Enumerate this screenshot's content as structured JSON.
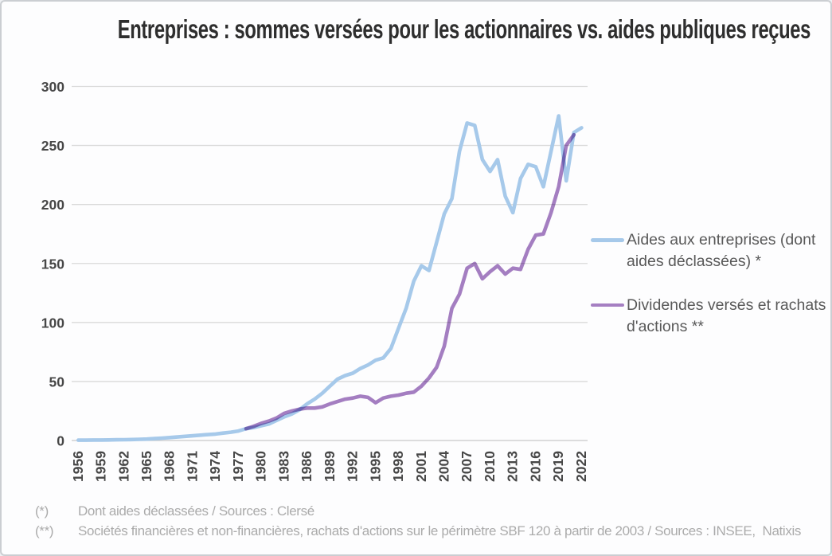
{
  "title": "Entreprises : sommes versées pour les actionnaires vs. aides publiques reçues",
  "legend": [
    {
      "label": "Aides aux entreprises (dont aides déclassées) *",
      "color": "#a6c9ea"
    },
    {
      "label": "Dividendes versés et rachats d'actions **",
      "color": "#a57fc2"
    }
  ],
  "footnotes": [
    {
      "marker": "(*)",
      "text": "Dont aides déclassées / Sources : Clersé"
    },
    {
      "marker": "(**)",
      "text": "Sociétés financières et non-financières, rachats d'actions sur le périmètre SBF 120 à partir de 2003 / Sources : INSEE,  Natixis"
    }
  ],
  "chart_data": {
    "type": "line",
    "title": "Entreprises : sommes versées pour les actionnaires vs. aides publiques reçues",
    "xlabel": "",
    "ylabel": "",
    "xlim": [
      1956,
      2022
    ],
    "ylim": [
      0,
      300
    ],
    "grid": "horizontal",
    "legend_position": "right",
    "y_ticks": [
      0,
      50,
      100,
      150,
      200,
      250,
      300
    ],
    "x_tick_labels": [
      "1956",
      "1959",
      "1962",
      "1965",
      "1968",
      "1971",
      "1974",
      "1977",
      "1980",
      "1983",
      "1986",
      "1989",
      "1992",
      "1995",
      "1998",
      "2001",
      "2004",
      "2007",
      "2010",
      "2013",
      "2016",
      "2019",
      "2022"
    ],
    "series": [
      {
        "name": "Aides aux entreprises (dont aides déclassées) *",
        "color": "#a6c9ea",
        "years": [
          1956,
          1957,
          1958,
          1959,
          1960,
          1961,
          1962,
          1963,
          1964,
          1965,
          1966,
          1967,
          1968,
          1969,
          1970,
          1971,
          1972,
          1973,
          1974,
          1975,
          1976,
          1977,
          1978,
          1979,
          1980,
          1981,
          1982,
          1983,
          1984,
          1985,
          1986,
          1987,
          1988,
          1989,
          1990,
          1991,
          1992,
          1993,
          1994,
          1995,
          1996,
          1997,
          1998,
          1999,
          2000,
          2001,
          2002,
          2003,
          2004,
          2005,
          2006,
          2007,
          2008,
          2009,
          2010,
          2011,
          2012,
          2013,
          2014,
          2015,
          2016,
          2017,
          2018,
          2019,
          2020,
          2021,
          2022
        ],
        "values": [
          0.3,
          0.3,
          0.4,
          0.4,
          0.5,
          0.6,
          0.7,
          0.8,
          1,
          1.2,
          1.6,
          2,
          2.5,
          3,
          3.5,
          4,
          4.5,
          5,
          5.5,
          6.3,
          7,
          8,
          10,
          11,
          12.5,
          14,
          17,
          20,
          22.5,
          26,
          31,
          35,
          40,
          46,
          52,
          55,
          57,
          61,
          64,
          68,
          70,
          78,
          95,
          112,
          135,
          148,
          144,
          168,
          192,
          205,
          245,
          269,
          267,
          238,
          228,
          238,
          207,
          193,
          222,
          234,
          232,
          215,
          245,
          275,
          220,
          261,
          265
        ]
      },
      {
        "name": "Dividendes versés et rachats d'actions **",
        "color": "#a57fc2",
        "years": [
          1978,
          1979,
          1980,
          1981,
          1982,
          1983,
          1984,
          1985,
          1986,
          1987,
          1988,
          1989,
          1990,
          1991,
          1992,
          1993,
          1994,
          1995,
          1996,
          1997,
          1998,
          1999,
          2000,
          2001,
          2002,
          2003,
          2004,
          2005,
          2006,
          2007,
          2008,
          2009,
          2010,
          2011,
          2012,
          2013,
          2014,
          2015,
          2016,
          2017,
          2018,
          2019,
          2020,
          2021
        ],
        "values": [
          10,
          12,
          14.5,
          16.5,
          19,
          23,
          25,
          26.5,
          27.5,
          27.5,
          28.5,
          31,
          33,
          35,
          36,
          37.5,
          36.5,
          32,
          36,
          37.5,
          38.5,
          40,
          41,
          46,
          53,
          62,
          80,
          112,
          124,
          146,
          150,
          137,
          143,
          148,
          141,
          146,
          145,
          162,
          174,
          175,
          193,
          215,
          250,
          259
        ]
      }
    ]
  }
}
